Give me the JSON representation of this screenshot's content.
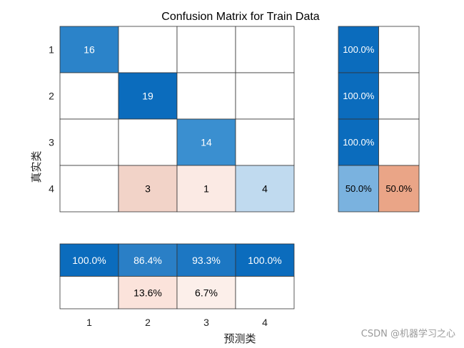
{
  "chart_data": {
    "type": "heatmap",
    "title": "Confusion Matrix for Train Data",
    "xlabel": "预测类",
    "ylabel": "真实类",
    "row_labels": [
      "1",
      "2",
      "3",
      "4"
    ],
    "col_labels": [
      "1",
      "2",
      "3",
      "4"
    ],
    "matrix": [
      [
        16,
        null,
        null,
        null
      ],
      [
        null,
        19,
        null,
        null
      ],
      [
        null,
        null,
        14,
        null
      ],
      [
        null,
        3,
        1,
        4
      ]
    ],
    "row_summary": {
      "columns": [
        "correct",
        "incorrect"
      ],
      "values": [
        [
          "100.0%",
          ""
        ],
        [
          "100.0%",
          ""
        ],
        [
          "100.0%",
          ""
        ],
        [
          "50.0%",
          "50.0%"
        ]
      ]
    },
    "column_summary": {
      "rows": [
        "correct",
        "incorrect"
      ],
      "values": [
        [
          "100.0%",
          "86.4%",
          "93.3%",
          "100.0%"
        ],
        [
          "",
          "13.6%",
          "6.7%",
          ""
        ]
      ]
    },
    "colors": {
      "diag": [
        "#2b83c9",
        "#0b6cbd",
        "#3a8fd0",
        "#c0daef"
      ],
      "off": [
        "#f2d3c8",
        "#fbeae4"
      ],
      "row_correct": [
        "#0b6cbd",
        "#0b6cbd",
        "#0b6cbd",
        "#7ab2df"
      ],
      "row_incorrect": "#eaa587",
      "col_correct": [
        "#0b6cbd",
        "#2a7fc6",
        "#1c77c3",
        "#0b6cbd"
      ],
      "col_incorrect": [
        "#fbe3db",
        "#fcefea"
      ],
      "grid": "#333333"
    }
  },
  "watermark": "CSDN @机器学习之心"
}
